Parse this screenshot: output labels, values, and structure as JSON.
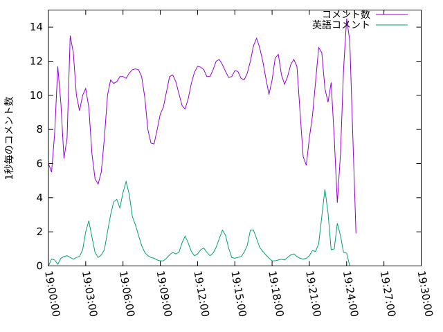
{
  "chart_data": {
    "type": "line",
    "title": "",
    "xlabel": "",
    "ylabel": "1秒毎のコメント数",
    "xlim": [
      "19:00:00",
      "19:30:00"
    ],
    "ylim": [
      0,
      15
    ],
    "yticks": [
      0,
      2,
      4,
      6,
      8,
      10,
      12,
      14
    ],
    "xticks": [
      "19:00:00",
      "19:03:00",
      "19:06:00",
      "19:09:00",
      "19:12:00",
      "19:15:00",
      "19:18:00",
      "19:21:00",
      "19:24:00",
      "19:27:00",
      "19:30:00"
    ],
    "grid": false,
    "legend_position": "top-right",
    "series": [
      {
        "name": "コメント数",
        "color": "#9400d3",
        "points": [
          [
            "19:00:00",
            6.0
          ],
          [
            "19:00:15",
            5.5
          ],
          [
            "19:00:30",
            7.8
          ],
          [
            "19:00:45",
            11.7
          ],
          [
            "19:01:00",
            9.5
          ],
          [
            "19:01:15",
            6.3
          ],
          [
            "19:01:30",
            7.5
          ],
          [
            "19:01:45",
            13.5
          ],
          [
            "19:02:00",
            12.5
          ],
          [
            "19:02:15",
            10.0
          ],
          [
            "19:02:30",
            9.1
          ],
          [
            "19:02:45",
            10.0
          ],
          [
            "19:03:00",
            10.4
          ],
          [
            "19:03:15",
            9.3
          ],
          [
            "19:03:30",
            6.6
          ],
          [
            "19:03:45",
            5.1
          ],
          [
            "19:04:00",
            4.8
          ],
          [
            "19:04:15",
            5.5
          ],
          [
            "19:04:30",
            7.5
          ],
          [
            "19:04:45",
            10.0
          ],
          [
            "19:05:00",
            10.9
          ],
          [
            "19:05:15",
            10.7
          ],
          [
            "19:05:30",
            10.8
          ],
          [
            "19:05:45",
            11.1
          ],
          [
            "19:06:00",
            11.1
          ],
          [
            "19:06:15",
            11.0
          ],
          [
            "19:06:30",
            11.3
          ],
          [
            "19:06:45",
            11.5
          ],
          [
            "19:07:00",
            11.55
          ],
          [
            "19:07:15",
            11.5
          ],
          [
            "19:07:30",
            11.1
          ],
          [
            "19:07:45",
            9.9
          ],
          [
            "19:08:00",
            8.0
          ],
          [
            "19:08:15",
            7.2
          ],
          [
            "19:08:30",
            7.15
          ],
          [
            "19:08:45",
            8.0
          ],
          [
            "19:09:00",
            8.9
          ],
          [
            "19:09:15",
            9.3
          ],
          [
            "19:09:30",
            10.2
          ],
          [
            "19:09:45",
            11.1
          ],
          [
            "19:10:00",
            11.2
          ],
          [
            "19:10:15",
            10.8
          ],
          [
            "19:10:30",
            10.1
          ],
          [
            "19:10:45",
            9.4
          ],
          [
            "19:11:00",
            9.2
          ],
          [
            "19:11:15",
            9.8
          ],
          [
            "19:11:30",
            10.7
          ],
          [
            "19:11:45",
            11.35
          ],
          [
            "19:12:00",
            11.7
          ],
          [
            "19:12:15",
            11.65
          ],
          [
            "19:12:30",
            11.5
          ],
          [
            "19:12:45",
            11.1
          ],
          [
            "19:13:00",
            11.1
          ],
          [
            "19:13:15",
            11.5
          ],
          [
            "19:13:30",
            12.0
          ],
          [
            "19:13:45",
            12.1
          ],
          [
            "19:14:00",
            11.8
          ],
          [
            "19:14:15",
            11.4
          ],
          [
            "19:14:30",
            11.05
          ],
          [
            "19:14:45",
            11.1
          ],
          [
            "19:15:00",
            11.45
          ],
          [
            "19:15:15",
            11.4
          ],
          [
            "19:15:30",
            11.0
          ],
          [
            "19:15:45",
            10.9
          ],
          [
            "19:16:00",
            11.3
          ],
          [
            "19:16:15",
            12.0
          ],
          [
            "19:16:30",
            12.9
          ],
          [
            "19:16:45",
            13.35
          ],
          [
            "19:17:00",
            12.8
          ],
          [
            "19:17:15",
            12.0
          ],
          [
            "19:17:30",
            11.0
          ],
          [
            "19:17:45",
            10.05
          ],
          [
            "19:18:00",
            10.9
          ],
          [
            "19:18:15",
            12.2
          ],
          [
            "19:18:30",
            12.4
          ],
          [
            "19:18:45",
            11.2
          ],
          [
            "19:19:00",
            10.65
          ],
          [
            "19:19:15",
            11.1
          ],
          [
            "19:19:30",
            11.8
          ],
          [
            "19:19:45",
            12.1
          ],
          [
            "19:20:00",
            11.7
          ],
          [
            "19:20:15",
            9.0
          ],
          [
            "19:20:30",
            6.4
          ],
          [
            "19:20:45",
            5.9
          ],
          [
            "19:21:00",
            7.5
          ],
          [
            "19:21:15",
            8.8
          ],
          [
            "19:21:30",
            10.8
          ],
          [
            "19:21:45",
            12.8
          ],
          [
            "19:22:00",
            12.5
          ],
          [
            "19:22:15",
            10.4
          ],
          [
            "19:22:30",
            9.6
          ],
          [
            "19:22:45",
            10.75
          ],
          [
            "19:23:00",
            7.5
          ],
          [
            "19:23:15",
            3.7
          ],
          [
            "19:23:30",
            6.5
          ],
          [
            "19:23:45",
            11.5
          ],
          [
            "19:24:00",
            14.5
          ],
          [
            "19:24:15",
            13.2
          ],
          [
            "19:24:30",
            7.5
          ],
          [
            "19:24:45",
            1.9
          ]
        ]
      },
      {
        "name": "英語コメント",
        "color": "#009e73",
        "points": [
          [
            "19:00:00",
            0.0
          ],
          [
            "19:00:15",
            0.4
          ],
          [
            "19:00:30",
            0.35
          ],
          [
            "19:00:45",
            0.1
          ],
          [
            "19:01:00",
            0.45
          ],
          [
            "19:01:15",
            0.55
          ],
          [
            "19:01:30",
            0.6
          ],
          [
            "19:01:45",
            0.5
          ],
          [
            "19:02:00",
            0.4
          ],
          [
            "19:02:15",
            0.5
          ],
          [
            "19:02:30",
            0.55
          ],
          [
            "19:02:45",
            0.95
          ],
          [
            "19:03:00",
            2.0
          ],
          [
            "19:03:15",
            2.65
          ],
          [
            "19:03:30",
            1.7
          ],
          [
            "19:03:45",
            0.8
          ],
          [
            "19:04:00",
            0.5
          ],
          [
            "19:04:15",
            0.65
          ],
          [
            "19:04:30",
            0.95
          ],
          [
            "19:04:45",
            2.0
          ],
          [
            "19:05:00",
            3.0
          ],
          [
            "19:05:15",
            3.75
          ],
          [
            "19:05:30",
            3.9
          ],
          [
            "19:05:45",
            3.4
          ],
          [
            "19:06:00",
            4.3
          ],
          [
            "19:06:15",
            4.95
          ],
          [
            "19:06:30",
            4.2
          ],
          [
            "19:06:45",
            2.9
          ],
          [
            "19:07:00",
            2.4
          ],
          [
            "19:07:15",
            1.8
          ],
          [
            "19:07:30",
            1.2
          ],
          [
            "19:07:45",
            0.8
          ],
          [
            "19:08:00",
            0.6
          ],
          [
            "19:08:15",
            0.5
          ],
          [
            "19:08:30",
            0.45
          ],
          [
            "19:08:45",
            0.35
          ],
          [
            "19:09:00",
            0.3
          ],
          [
            "19:09:15",
            0.3
          ],
          [
            "19:09:30",
            0.45
          ],
          [
            "19:09:45",
            0.65
          ],
          [
            "19:10:00",
            0.8
          ],
          [
            "19:10:15",
            0.7
          ],
          [
            "19:10:30",
            0.8
          ],
          [
            "19:10:45",
            1.35
          ],
          [
            "19:11:00",
            1.75
          ],
          [
            "19:11:15",
            1.35
          ],
          [
            "19:11:30",
            0.85
          ],
          [
            "19:11:45",
            0.6
          ],
          [
            "19:12:00",
            0.7
          ],
          [
            "19:12:15",
            0.95
          ],
          [
            "19:12:30",
            1.05
          ],
          [
            "19:12:45",
            0.8
          ],
          [
            "19:13:00",
            0.6
          ],
          [
            "19:13:15",
            0.75
          ],
          [
            "19:13:30",
            1.1
          ],
          [
            "19:13:45",
            1.6
          ],
          [
            "19:14:00",
            2.1
          ],
          [
            "19:14:15",
            1.8
          ],
          [
            "19:14:30",
            1.05
          ],
          [
            "19:14:45",
            0.5
          ],
          [
            "19:15:00",
            0.45
          ],
          [
            "19:15:15",
            0.5
          ],
          [
            "19:15:30",
            0.55
          ],
          [
            "19:15:45",
            0.8
          ],
          [
            "19:16:00",
            1.2
          ],
          [
            "19:16:15",
            2.1
          ],
          [
            "19:16:30",
            2.1
          ],
          [
            "19:16:45",
            1.6
          ],
          [
            "19:17:00",
            1.1
          ],
          [
            "19:17:15",
            0.85
          ],
          [
            "19:17:30",
            0.65
          ],
          [
            "19:17:45",
            0.45
          ],
          [
            "19:18:00",
            0.3
          ],
          [
            "19:18:15",
            0.3
          ],
          [
            "19:18:30",
            0.35
          ],
          [
            "19:18:45",
            0.4
          ],
          [
            "19:19:00",
            0.35
          ],
          [
            "19:19:15",
            0.5
          ],
          [
            "19:19:30",
            0.65
          ],
          [
            "19:19:45",
            0.7
          ],
          [
            "19:20:00",
            0.55
          ],
          [
            "19:20:15",
            0.45
          ],
          [
            "19:20:30",
            0.4
          ],
          [
            "19:20:45",
            0.45
          ],
          [
            "19:21:00",
            0.6
          ],
          [
            "19:21:15",
            0.9
          ],
          [
            "19:21:30",
            0.85
          ],
          [
            "19:21:45",
            1.3
          ],
          [
            "19:22:00",
            2.9
          ],
          [
            "19:22:15",
            4.5
          ],
          [
            "19:22:30",
            3.1
          ],
          [
            "19:22:45",
            0.95
          ],
          [
            "19:23:00",
            1.0
          ],
          [
            "19:23:15",
            2.5
          ],
          [
            "19:23:30",
            1.8
          ],
          [
            "19:23:45",
            0.8
          ],
          [
            "19:24:00",
            0.75
          ],
          [
            "19:24:15",
            0.0
          ]
        ]
      }
    ]
  }
}
